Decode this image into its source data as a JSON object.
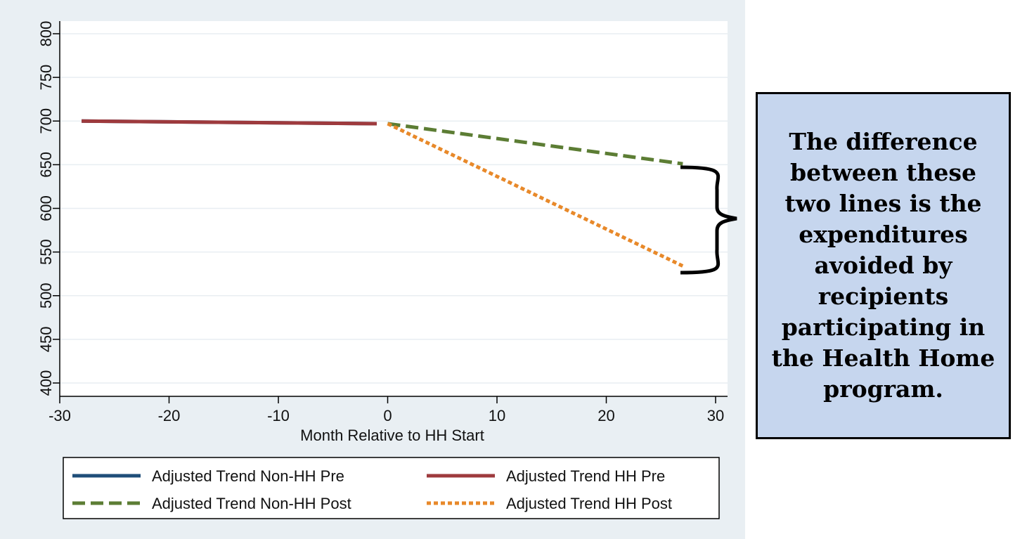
{
  "chart_data": {
    "type": "line",
    "xlabel": "Month Relative to HH Start",
    "ylabel": "",
    "xlim": [
      -30,
      30
    ],
    "ylim": [
      400,
      800
    ],
    "x_ticks": [
      "-30",
      "-20",
      "-10",
      "0",
      "10",
      "20",
      "30"
    ],
    "y_ticks": [
      "400",
      "450",
      "500",
      "550",
      "600",
      "650",
      "700",
      "750",
      "800"
    ],
    "grid": "horizontal",
    "legend_position": "bottom",
    "series": [
      {
        "name": "Adjusted Trend Non-HH Pre",
        "color": "#1f4e79",
        "dash": "solid",
        "x": [
          -28,
          -1
        ],
        "y": [
          700,
          697
        ]
      },
      {
        "name": "Adjusted Trend HH Pre",
        "color": "#9e3a3d",
        "dash": "solid",
        "x": [
          -28,
          -1
        ],
        "y": [
          700,
          697
        ]
      },
      {
        "name": "Adjusted Trend Non-HH Post",
        "color": "#5c7d34",
        "dash": "dashed",
        "x": [
          0,
          27
        ],
        "y": [
          697,
          651
        ]
      },
      {
        "name": "Adjusted Trend HH Post",
        "color": "#e8892a",
        "dash": "dotted",
        "x": [
          0,
          27
        ],
        "y": [
          697,
          534
        ]
      }
    ],
    "annotation": "The difference between these two lines is the expenditures avoided by recipients participating in the Health Home program."
  },
  "colors": {
    "plot_region_bg": "#e9eff3",
    "plot_bg": "#ffffff",
    "gridline": "#e8eef2",
    "callout_bg": "#c6d6ee"
  }
}
